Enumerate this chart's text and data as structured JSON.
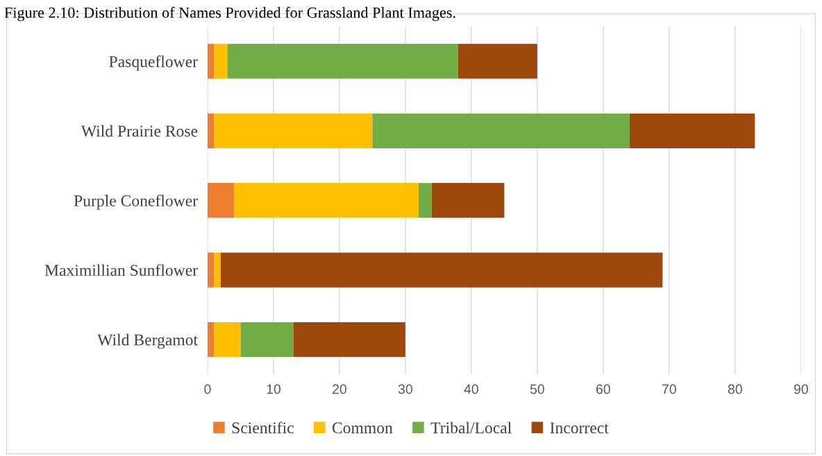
{
  "chart_data": {
    "type": "bar",
    "orientation": "horizontal",
    "stacked": true,
    "title": "Figure 2.10: Distribution of Names Provided for Grassland Plant Images.",
    "categories": [
      "Pasqueflower",
      "Wild Prairie Rose",
      "Purple Coneflower",
      "Maximillian Sunflower",
      "Wild Bergamot"
    ],
    "series": [
      {
        "name": "Scientific",
        "color": "#ed7d31",
        "values": [
          1,
          1,
          4,
          1,
          1
        ]
      },
      {
        "name": "Common",
        "color": "#ffc000",
        "values": [
          2,
          24,
          28,
          1,
          4
        ]
      },
      {
        "name": "Tribal/Local",
        "color": "#70ad47",
        "values": [
          35,
          39,
          2,
          0,
          8
        ]
      },
      {
        "name": "Incorrect",
        "color": "#9e480e",
        "values": [
          12,
          19,
          11,
          67,
          17
        ]
      }
    ],
    "xlim": [
      0,
      90
    ],
    "xticks": [
      0,
      10,
      20,
      30,
      40,
      50,
      60,
      70,
      80,
      90
    ],
    "grid": "x",
    "legend": "bottom"
  }
}
